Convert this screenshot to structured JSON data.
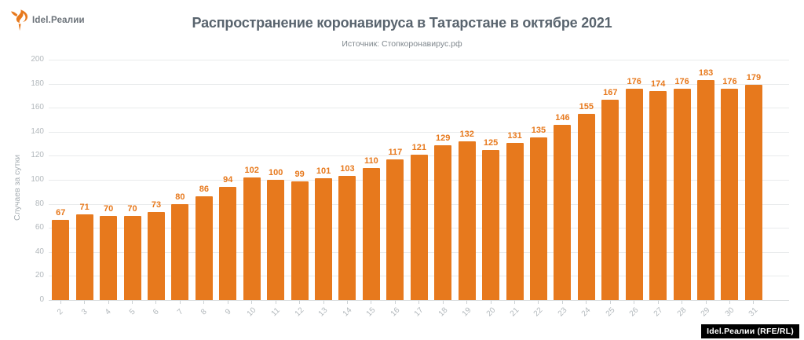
{
  "logo": {
    "brand": "Idel.Реалии"
  },
  "header": {
    "title": "Распространение коронавируса в Татарстане в октябре 2021",
    "subtitle": "Источник: Стопкоронавирус.рф"
  },
  "chart_data": {
    "type": "bar",
    "title": "Распространение коронавируса в Татарстане в октябре 2021",
    "subtitle": "Источник: Стопкоронавирус.рф",
    "xlabel": "",
    "ylabel": "Случаев за сутки",
    "categories": [
      "2",
      "3",
      "4",
      "5",
      "6",
      "7",
      "8",
      "9",
      "10",
      "11",
      "12",
      "13",
      "14",
      "15",
      "16",
      "17",
      "18",
      "19",
      "20",
      "21",
      "22",
      "23",
      "24",
      "25",
      "26",
      "27",
      "28",
      "29",
      "30",
      "31"
    ],
    "values": [
      67,
      71,
      70,
      70,
      73,
      80,
      86,
      94,
      102,
      100,
      99,
      101,
      103,
      110,
      117,
      121,
      129,
      132,
      125,
      131,
      135,
      146,
      155,
      167,
      176,
      174,
      176,
      183,
      176,
      179
    ],
    "ylim": [
      0,
      200
    ],
    "ytick_step": 20,
    "grid": true,
    "legend": "none",
    "bar_color": "#e7791d",
    "value_label_color": "#e7791d"
  },
  "colors": {
    "accent_orange": "#e7791d",
    "title_gray": "#59646e",
    "axis_gray": "#b2b8bc",
    "attribution_bg": "#000000",
    "attribution_text": "#ffffff"
  },
  "footer": {
    "attribution": "Idel.Реалии (RFE/RL)"
  }
}
